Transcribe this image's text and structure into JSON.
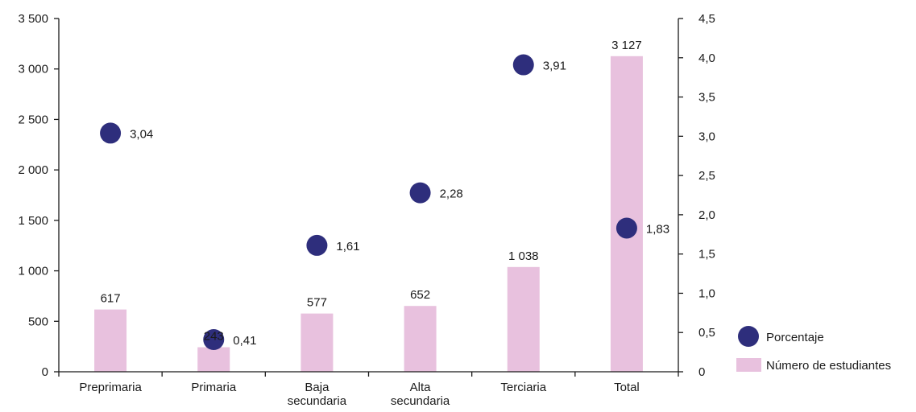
{
  "chart_data": {
    "type": "bar",
    "categories": [
      [
        "Preprimaria"
      ],
      [
        "Primaria"
      ],
      [
        "Baja",
        "secundaria"
      ],
      [
        "Alta",
        "secundaria"
      ],
      [
        "Terciaria"
      ],
      [
        "Total"
      ]
    ],
    "series": [
      {
        "name": "Número de estudiantes",
        "kind": "bar",
        "axis": "left",
        "values": [
          617,
          243,
          577,
          652,
          1038,
          3127
        ],
        "labels": [
          "617",
          "243",
          "577",
          "652",
          "1 038",
          "3 127"
        ],
        "color": "#e8c1de"
      },
      {
        "name": "Porcentaje",
        "kind": "scatter",
        "axis": "right",
        "values": [
          3.04,
          0.41,
          1.61,
          2.28,
          3.91,
          1.83
        ],
        "labels": [
          "3,04",
          "0,41",
          "1,61",
          "2,28",
          "3,91",
          "1,83"
        ],
        "color": "#2e2e7c"
      }
    ],
    "y_left": {
      "min": 0,
      "max": 3500,
      "ticks": [
        0,
        500,
        1000,
        1500,
        2000,
        2500,
        3000,
        3500
      ],
      "tick_labels": [
        "0",
        "500",
        "1 000",
        "1 500",
        "2 000",
        "2 500",
        "3 000",
        "3 500"
      ]
    },
    "y_right": {
      "min": 0,
      "max": 4.5,
      "ticks": [
        0,
        0.5,
        1.0,
        1.5,
        2.0,
        2.5,
        3.0,
        3.5,
        4.0,
        4.5
      ],
      "tick_labels": [
        "0",
        "0,5",
        "1,0",
        "1,5",
        "2,0",
        "2,5",
        "3,0",
        "3,5",
        "4,0",
        "4,5"
      ]
    },
    "title": "",
    "xlabel": "",
    "ylabel": "",
    "grid": false,
    "legend_position": "bottom-right"
  }
}
